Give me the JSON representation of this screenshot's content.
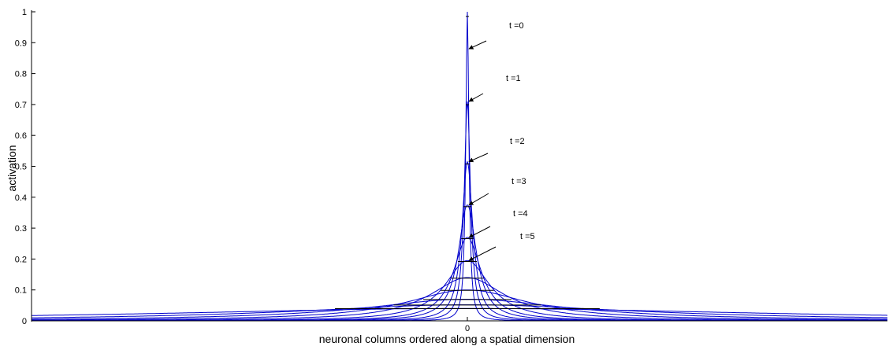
{
  "chart_data": {
    "type": "line",
    "xlabel": "neuronal columns ordered along a spatial dimension",
    "ylabel": "activation",
    "x_tick_labels": [
      "0"
    ],
    "y_tick_labels": [
      "0",
      "0.1",
      "0.2",
      "0.3",
      "0.4",
      "0.5",
      "0.6",
      "0.7",
      "0.8",
      "0.9",
      "1"
    ],
    "ylim": [
      0,
      1
    ],
    "xlim": [
      -100,
      100
    ],
    "grid": false,
    "colors": {
      "curve": "#0000cc",
      "peak_segment": "#000000",
      "axis": "#000000"
    },
    "series": [
      {
        "peak": 1.0,
        "width": 0.45
      },
      {
        "peak": 0.71,
        "width": 0.9
      },
      {
        "peak": 0.515,
        "width": 1.55
      },
      {
        "peak": 0.375,
        "width": 2.6
      },
      {
        "peak": 0.27,
        "width": 4.0
      },
      {
        "peak": 0.195,
        "width": 6.5
      },
      {
        "peak": 0.14,
        "width": 11
      },
      {
        "peak": 0.1,
        "width": 18
      },
      {
        "peak": 0.07,
        "width": 30
      },
      {
        "peak": 0.052,
        "width": 50
      },
      {
        "peak": 0.04,
        "width": 90
      }
    ],
    "annotations": [
      {
        "text": "t =0",
        "y": 0.88
      },
      {
        "text": "t =1",
        "y": 0.71
      },
      {
        "text": "t =2",
        "y": 0.515
      },
      {
        "text": "t =3",
        "y": 0.375
      },
      {
        "text": "t =4",
        "y": 0.27
      },
      {
        "text": "t =5",
        "y": 0.195
      }
    ]
  }
}
